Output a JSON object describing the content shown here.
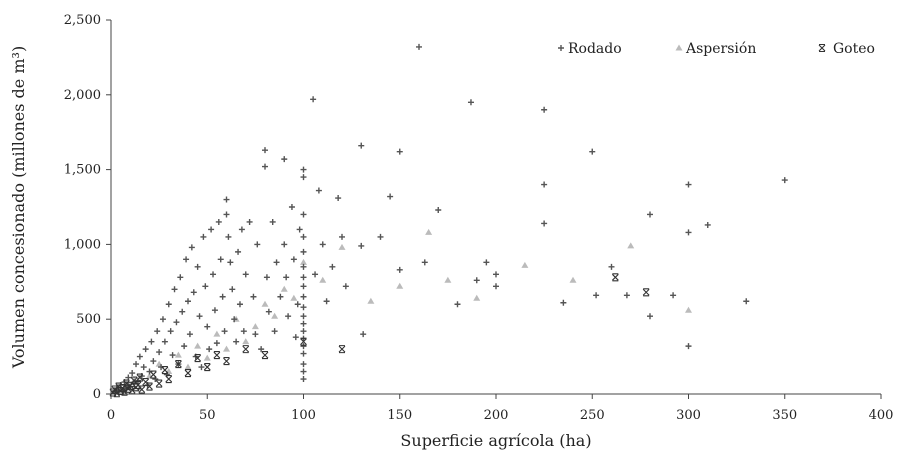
{
  "chart_data": {
    "type": "scatter",
    "xlabel": "Superficie agrícola (ha)",
    "ylabel": "Volumen concesionado (millones de m³)",
    "xlim": [
      0,
      400
    ],
    "ylim": [
      0,
      2500
    ],
    "x_ticks": [
      "0",
      "50",
      "100",
      "150",
      "200",
      "250",
      "300",
      "350",
      "400"
    ],
    "y_ticks": [
      "0",
      "500",
      "1,000",
      "1,500",
      "2,000",
      "2,500"
    ],
    "legend_position": "top-right",
    "grid": false,
    "series": [
      {
        "name": "Rodado",
        "marker": "plus",
        "color": "#555555",
        "points": [
          [
            2,
            20
          ],
          [
            3,
            40
          ],
          [
            4,
            15
          ],
          [
            5,
            60
          ],
          [
            6,
            25
          ],
          [
            7,
            80
          ],
          [
            8,
            30
          ],
          [
            9,
            110
          ],
          [
            10,
            50
          ],
          [
            11,
            140
          ],
          [
            12,
            70
          ],
          [
            13,
            200
          ],
          [
            14,
            90
          ],
          [
            15,
            250
          ],
          [
            16,
            120
          ],
          [
            17,
            180
          ],
          [
            18,
            300
          ],
          [
            19,
            60
          ],
          [
            20,
            150
          ],
          [
            21,
            350
          ],
          [
            22,
            220
          ],
          [
            23,
            100
          ],
          [
            24,
            420
          ],
          [
            25,
            280
          ],
          [
            26,
            180
          ],
          [
            27,
            500
          ],
          [
            28,
            350
          ],
          [
            29,
            130
          ],
          [
            30,
            600
          ],
          [
            31,
            420
          ],
          [
            32,
            260
          ],
          [
            33,
            700
          ],
          [
            34,
            480
          ],
          [
            35,
            200
          ],
          [
            36,
            780
          ],
          [
            37,
            550
          ],
          [
            38,
            320
          ],
          [
            39,
            900
          ],
          [
            40,
            620
          ],
          [
            41,
            400
          ],
          [
            42,
            980
          ],
          [
            43,
            680
          ],
          [
            44,
            250
          ],
          [
            45,
            850
          ],
          [
            46,
            520
          ],
          [
            47,
            180
          ],
          [
            48,
            1050
          ],
          [
            49,
            720
          ],
          [
            50,
            450
          ],
          [
            51,
            300
          ],
          [
            52,
            1100
          ],
          [
            53,
            800
          ],
          [
            54,
            560
          ],
          [
            55,
            340
          ],
          [
            56,
            1150
          ],
          [
            57,
            900
          ],
          [
            58,
            650
          ],
          [
            59,
            420
          ],
          [
            60,
            1300
          ],
          [
            60,
            1200
          ],
          [
            61,
            1050
          ],
          [
            62,
            880
          ],
          [
            63,
            700
          ],
          [
            64,
            500
          ],
          [
            65,
            350
          ],
          [
            66,
            950
          ],
          [
            67,
            600
          ],
          [
            68,
            1100
          ],
          [
            69,
            420
          ],
          [
            70,
            800
          ],
          [
            72,
            1150
          ],
          [
            74,
            650
          ],
          [
            75,
            400
          ],
          [
            76,
            1000
          ],
          [
            78,
            300
          ],
          [
            80,
            1630
          ],
          [
            80,
            1520
          ],
          [
            81,
            780
          ],
          [
            82,
            550
          ],
          [
            84,
            1150
          ],
          [
            85,
            420
          ],
          [
            86,
            880
          ],
          [
            88,
            650
          ],
          [
            90,
            1570
          ],
          [
            90,
            1000
          ],
          [
            91,
            780
          ],
          [
            92,
            520
          ],
          [
            94,
            1250
          ],
          [
            95,
            900
          ],
          [
            96,
            380
          ],
          [
            97,
            600
          ],
          [
            98,
            1100
          ],
          [
            100,
            1500
          ],
          [
            100,
            1450
          ],
          [
            100,
            1200
          ],
          [
            100,
            1050
          ],
          [
            100,
            950
          ],
          [
            100,
            850
          ],
          [
            100,
            780
          ],
          [
            100,
            720
          ],
          [
            100,
            650
          ],
          [
            100,
            580
          ],
          [
            100,
            520
          ],
          [
            100,
            470
          ],
          [
            100,
            420
          ],
          [
            100,
            370
          ],
          [
            100,
            320
          ],
          [
            100,
            270
          ],
          [
            100,
            200
          ],
          [
            100,
            150
          ],
          [
            100,
            100
          ],
          [
            105,
            1970
          ],
          [
            106,
            800
          ],
          [
            108,
            1360
          ],
          [
            110,
            1000
          ],
          [
            112,
            620
          ],
          [
            115,
            850
          ],
          [
            118,
            1310
          ],
          [
            120,
            1050
          ],
          [
            122,
            720
          ],
          [
            130,
            1660
          ],
          [
            130,
            990
          ],
          [
            131,
            400
          ],
          [
            140,
            1050
          ],
          [
            145,
            1320
          ],
          [
            150,
            1620
          ],
          [
            150,
            830
          ],
          [
            160,
            2320
          ],
          [
            163,
            880
          ],
          [
            170,
            1230
          ],
          [
            180,
            600
          ],
          [
            187,
            1950
          ],
          [
            190,
            760
          ],
          [
            195,
            880
          ],
          [
            200,
            800
          ],
          [
            200,
            720
          ],
          [
            225,
            1900
          ],
          [
            225,
            1400
          ],
          [
            225,
            1140
          ],
          [
            235,
            610
          ],
          [
            250,
            1620
          ],
          [
            252,
            660
          ],
          [
            260,
            850
          ],
          [
            268,
            660
          ],
          [
            280,
            1200
          ],
          [
            280,
            520
          ],
          [
            292,
            660
          ],
          [
            300,
            1400
          ],
          [
            300,
            1080
          ],
          [
            300,
            320
          ],
          [
            310,
            1130
          ],
          [
            330,
            620
          ],
          [
            350,
            1430
          ]
        ]
      },
      {
        "name": "Aspersión",
        "marker": "triangle",
        "color": "#bbbbbb",
        "points": [
          [
            5,
            30
          ],
          [
            8,
            60
          ],
          [
            12,
            90
          ],
          [
            15,
            40
          ],
          [
            20,
            120
          ],
          [
            25,
            200
          ],
          [
            30,
            150
          ],
          [
            35,
            260
          ],
          [
            40,
            180
          ],
          [
            45,
            320
          ],
          [
            50,
            240
          ],
          [
            55,
            400
          ],
          [
            60,
            300
          ],
          [
            65,
            500
          ],
          [
            70,
            350
          ],
          [
            75,
            450
          ],
          [
            80,
            600
          ],
          [
            85,
            520
          ],
          [
            90,
            700
          ],
          [
            95,
            640
          ],
          [
            100,
            880
          ],
          [
            110,
            760
          ],
          [
            120,
            980
          ],
          [
            135,
            620
          ],
          [
            150,
            720
          ],
          [
            165,
            1080
          ],
          [
            175,
            760
          ],
          [
            190,
            640
          ],
          [
            215,
            860
          ],
          [
            240,
            760
          ],
          [
            270,
            990
          ],
          [
            300,
            560
          ]
        ]
      },
      {
        "name": "Goteo",
        "marker": "cross",
        "color": "#333333",
        "points": [
          [
            1,
            10
          ],
          [
            2,
            30
          ],
          [
            3,
            5
          ],
          [
            4,
            50
          ],
          [
            5,
            20
          ],
          [
            6,
            40
          ],
          [
            7,
            15
          ],
          [
            8,
            70
          ],
          [
            9,
            35
          ],
          [
            10,
            55
          ],
          [
            11,
            25
          ],
          [
            12,
            90
          ],
          [
            13,
            45
          ],
          [
            14,
            60
          ],
          [
            15,
            110
          ],
          [
            16,
            30
          ],
          [
            18,
            80
          ],
          [
            20,
            50
          ],
          [
            22,
            130
          ],
          [
            25,
            70
          ],
          [
            28,
            160
          ],
          [
            30,
            100
          ],
          [
            35,
            200
          ],
          [
            40,
            140
          ],
          [
            45,
            240
          ],
          [
            50,
            180
          ],
          [
            55,
            260
          ],
          [
            60,
            220
          ],
          [
            70,
            300
          ],
          [
            80,
            260
          ],
          [
            100,
            350
          ],
          [
            120,
            300
          ],
          [
            262,
            780
          ],
          [
            278,
            680
          ]
        ]
      }
    ]
  }
}
